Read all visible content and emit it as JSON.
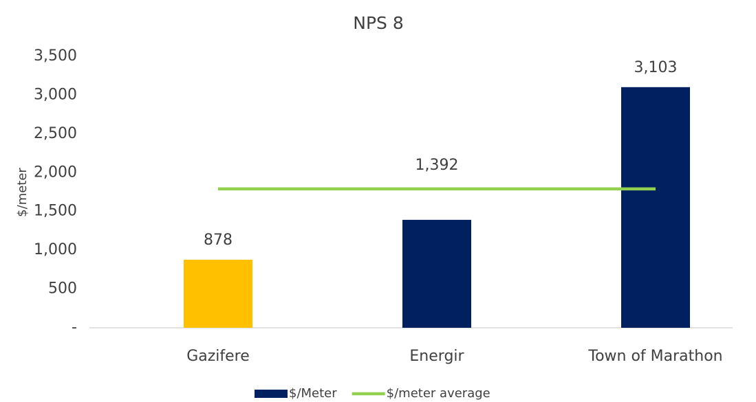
{
  "chart_data": {
    "type": "bar",
    "title": "NPS 8",
    "y_label": "$/meter",
    "categories": [
      "Gazifere",
      "Energir",
      "Town of Marathon"
    ],
    "series": [
      {
        "name": "$/Meter",
        "type": "bar",
        "color": "#002060",
        "colors": [
          "#FFC000",
          "#002060",
          "#002060"
        ],
        "values": [
          878,
          1392,
          3103
        ],
        "value_labels": [
          "878",
          "1,392",
          "3,103"
        ]
      },
      {
        "name": "$/meter average",
        "type": "line",
        "color": "#92D050",
        "values": [
          1791,
          1791,
          1791
        ]
      }
    ],
    "ylim": [
      0,
      3500
    ],
    "yticks": [
      {
        "value": 0,
        "label": "-"
      },
      500,
      {
        "value": 1000,
        "label": "1,000"
      },
      {
        "value": 1500,
        "label": "1,500"
      },
      {
        "value": 2000,
        "label": "2,000"
      },
      {
        "value": 2500,
        "label": "2,500"
      },
      {
        "value": 3000,
        "label": "3,000"
      },
      {
        "value": 3500,
        "label": "3,500"
      }
    ],
    "grid": false,
    "legend": "bottom"
  }
}
